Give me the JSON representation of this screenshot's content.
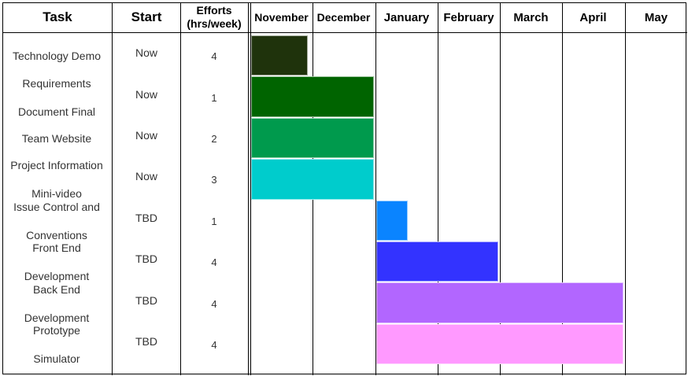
{
  "header": {
    "task": "Task",
    "start": "Start",
    "efforts_line1": "Efforts",
    "efforts_line2": "(hrs/week)"
  },
  "chart_data": {
    "type": "gantt",
    "months": [
      "November",
      "December",
      "January",
      "February",
      "March",
      "April",
      "May"
    ],
    "tasks": [
      {
        "task_lines": [
          "Technology Demo"
        ],
        "start": "Now",
        "effort": 4,
        "bar_start_month": 0,
        "bar_end_month": 0.95,
        "color": "#1f330c"
      },
      {
        "task_lines": [
          "Requirements",
          "Document Final"
        ],
        "start": "Now",
        "effort": 1,
        "bar_start_month": 0,
        "bar_end_month": 2,
        "color": "#006400"
      },
      {
        "task_lines": [
          "Team Website"
        ],
        "start": "Now",
        "effort": 2,
        "bar_start_month": 0,
        "bar_end_month": 2,
        "color": "#009a4d"
      },
      {
        "task_lines": [
          "Project Information",
          "Mini-video"
        ],
        "start": "Now",
        "effort": 3,
        "bar_start_month": 0,
        "bar_end_month": 2,
        "color": "#00cccc"
      },
      {
        "task_lines": [
          "Issue Control and",
          "Conventions"
        ],
        "start": "TBD",
        "effort": 1,
        "bar_start_month": 2,
        "bar_end_month": 2.55,
        "color": "#0a84ff"
      },
      {
        "task_lines": [
          "Front End",
          "Development"
        ],
        "start": "TBD",
        "effort": 4,
        "bar_start_month": 2,
        "bar_end_month": 4,
        "color": "#3333ff"
      },
      {
        "task_lines": [
          "Back End",
          "Development"
        ],
        "start": "TBD",
        "effort": 4,
        "bar_start_month": 2,
        "bar_end_month": 6,
        "color": "#b266ff"
      },
      {
        "task_lines": [
          "Prototype",
          "Simulator"
        ],
        "start": "TBD",
        "effort": 4,
        "bar_start_month": 2,
        "bar_end_month": 6,
        "color": "#ff99ff"
      }
    ]
  }
}
